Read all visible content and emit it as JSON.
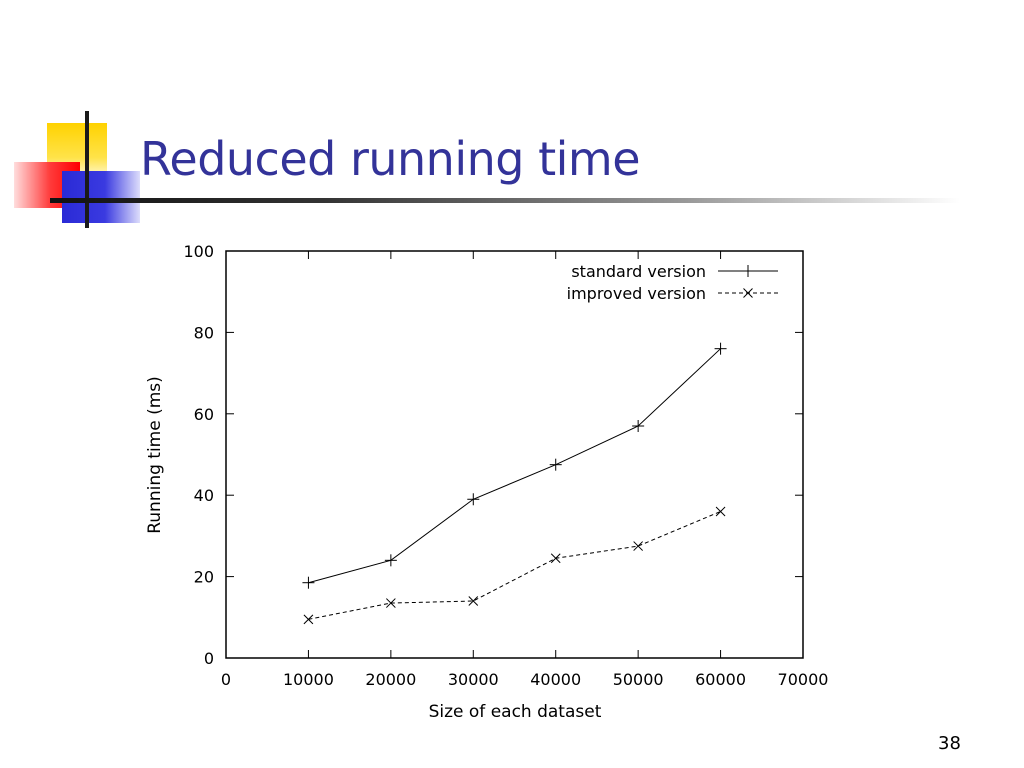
{
  "slide": {
    "title": "Reduced running time",
    "page_number": "38"
  },
  "chart_data": {
    "type": "line",
    "xlabel": "Size of each dataset",
    "ylabel": "Running time (ms)",
    "xlim": [
      0,
      70000
    ],
    "ylim": [
      0,
      100
    ],
    "x_ticks": [
      0,
      10000,
      20000,
      30000,
      40000,
      50000,
      60000,
      70000
    ],
    "y_ticks": [
      0,
      20,
      40,
      60,
      80,
      100
    ],
    "grid": false,
    "legend_position": "top-right",
    "x": [
      10000,
      20000,
      30000,
      40000,
      50000,
      60000
    ],
    "series": [
      {
        "name": "standard version",
        "marker": "plus",
        "line_style": "solid",
        "values": [
          18.5,
          24,
          39,
          47.5,
          57,
          76
        ]
      },
      {
        "name": "improved version",
        "marker": "cross",
        "line_style": "dashed",
        "values": [
          9.5,
          13.5,
          14,
          24.5,
          27.5,
          36
        ]
      }
    ]
  }
}
